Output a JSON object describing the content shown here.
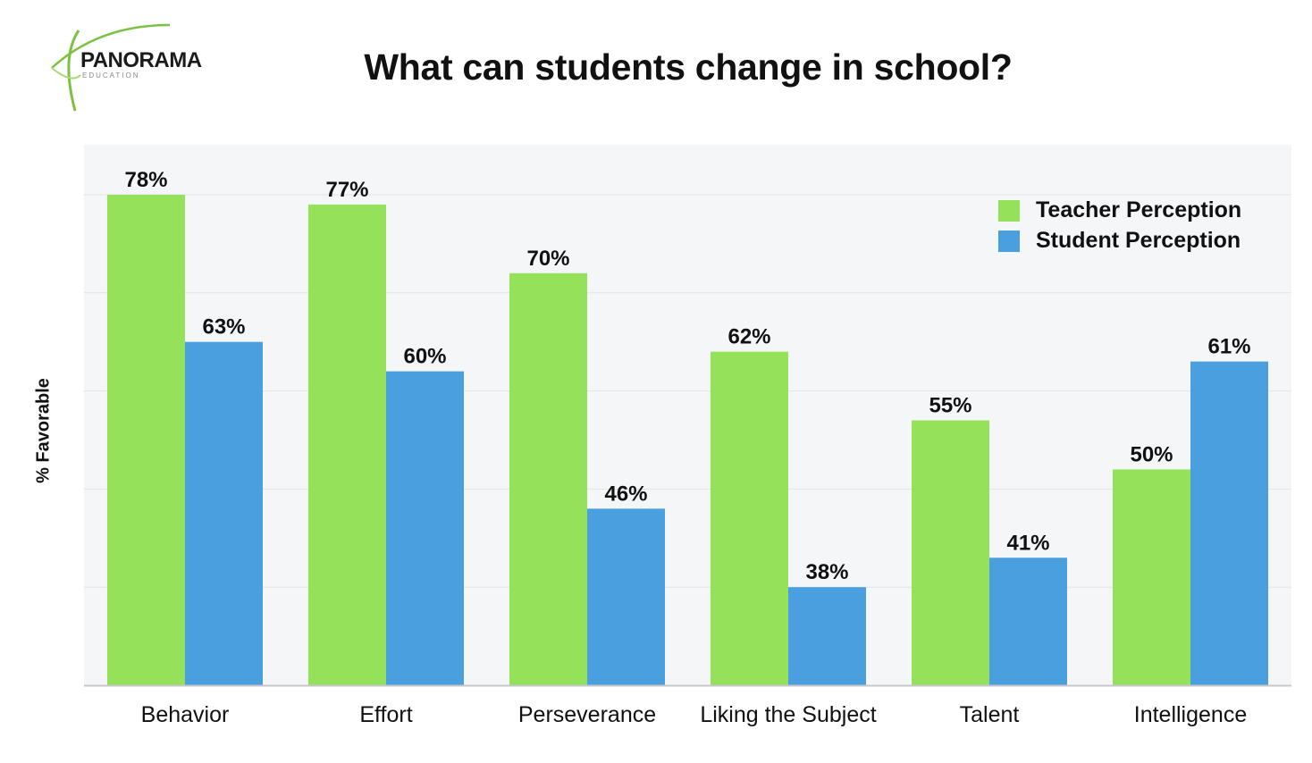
{
  "logo": {
    "name": "PANORAMA",
    "subtitle": "EDUCATION",
    "accent_color": "#7cc242"
  },
  "chart_data": {
    "type": "bar",
    "title": "What can students change in school?",
    "xlabel": "",
    "ylabel": "% Favorable",
    "categories": [
      "Behavior",
      "Effort",
      "Perseverance",
      "Liking the Subject",
      "Talent",
      "Intelligence"
    ],
    "series": [
      {
        "name": "Teacher Perception",
        "values": [
          78,
          77,
          70,
          62,
          55,
          50
        ],
        "labels": [
          "78%",
          "77%",
          "70%",
          "62%",
          "55%",
          "50%"
        ],
        "color": "#95e15a"
      },
      {
        "name": "Student Perception",
        "values": [
          63,
          60,
          46,
          38,
          41,
          61
        ],
        "labels": [
          "63%",
          "60%",
          "46%",
          "38%",
          "41%",
          "61%"
        ],
        "color": "#4a9fde"
      }
    ],
    "ylim": [
      28,
      80
    ],
    "grid": true,
    "legend_position": "top-right",
    "background_color": "#f5f6f8",
    "grid_color": "#e2e3e6"
  }
}
